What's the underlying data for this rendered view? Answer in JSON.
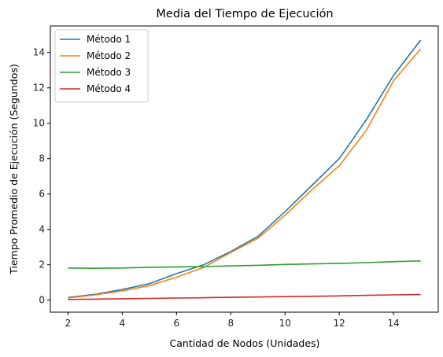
{
  "chart_data": {
    "type": "line",
    "title": "Media del Tiempo de Ejecución",
    "xlabel": "Cantidad de Nodos (Unidades)",
    "ylabel": "Tiempo Promedio de Ejecución (Segundos)",
    "xlim": [
      1.35,
      15.65
    ],
    "ylim": [
      -0.68,
      15.5
    ],
    "xticks": [
      2,
      4,
      6,
      8,
      10,
      12,
      14
    ],
    "yticks": [
      0,
      2,
      4,
      6,
      8,
      10,
      12,
      14
    ],
    "grid": false,
    "legend_position": "top-left",
    "x": [
      2,
      3,
      4,
      5,
      6,
      7,
      8,
      9,
      10,
      11,
      12,
      13,
      14,
      15
    ],
    "series": [
      {
        "name": "Método 1",
        "color": "#1f77b4",
        "values": [
          0.15,
          0.33,
          0.6,
          0.93,
          1.5,
          2.0,
          2.75,
          3.6,
          5.0,
          6.5,
          8.0,
          10.2,
          12.7,
          14.7
        ]
      },
      {
        "name": "Método 2",
        "color": "#ff7f0e",
        "values": [
          0.12,
          0.3,
          0.52,
          0.82,
          1.3,
          1.85,
          2.7,
          3.5,
          4.8,
          6.25,
          7.6,
          9.6,
          12.4,
          14.2
        ]
      },
      {
        "name": "Método 3",
        "color": "#2ca02c",
        "values": [
          1.82,
          1.8,
          1.82,
          1.86,
          1.88,
          1.9,
          1.94,
          1.97,
          2.02,
          2.05,
          2.08,
          2.12,
          2.18,
          2.22
        ]
      },
      {
        "name": "Método 4",
        "color": "#d62728",
        "values": [
          0.04,
          0.06,
          0.08,
          0.1,
          0.12,
          0.14,
          0.16,
          0.18,
          0.2,
          0.22,
          0.24,
          0.27,
          0.3,
          0.32
        ]
      }
    ]
  }
}
